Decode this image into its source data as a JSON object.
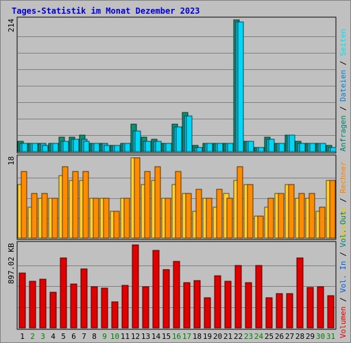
{
  "chart_data": {
    "type": "bar",
    "title": "Tages-Statistik im Monat Dezember 2023",
    "days": [
      "1",
      "2",
      "3",
      "4",
      "5",
      "6",
      "7",
      "8",
      "9",
      "10",
      "11",
      "12",
      "13",
      "14",
      "15",
      "16",
      "17",
      "18",
      "19",
      "20",
      "21",
      "22",
      "23",
      "24",
      "25",
      "26",
      "27",
      "28",
      "29",
      "30",
      "31"
    ],
    "weekend_days": [
      "2",
      "3",
      "9",
      "10",
      "16",
      "17",
      "23",
      "24",
      "30",
      "31"
    ],
    "colors": {
      "anfragen": "#008070",
      "dateien": "#0080d0",
      "seiten": "#00e0f0",
      "besuche": "#ffe040",
      "rechner": "#ff8000",
      "volin": "#0060d0",
      "volout": "#008080",
      "volumen": "#e00000",
      "weekday": "#000000",
      "weekend": "#008000",
      "title": "#0000d0"
    },
    "panels": [
      {
        "id": "hits",
        "ymax_label": "214",
        "ylim": [
          0,
          214
        ],
        "label_parts": [
          {
            "text": "Anfragen",
            "color": "#008070"
          },
          {
            "text": "Dateien",
            "color": "#0080d0"
          },
          {
            "text": "Seiten",
            "color": "#00e0f0"
          }
        ],
        "series": [
          {
            "name": "Anfragen",
            "color": "#0f8f6f",
            "values": [
              17,
              13,
              13,
              13,
              23,
              23,
              27,
              13,
              13,
              10,
              13,
              45,
              23,
              20,
              13,
              45,
              63,
              10,
              13,
              13,
              13,
              214,
              17,
              7,
              23,
              13,
              27,
              17,
              13,
              13,
              10
            ]
          },
          {
            "name": "Dateien",
            "color": "#1fb0d0",
            "values": [
              13,
              13,
              13,
              13,
              17,
              20,
              20,
              13,
              13,
              10,
              13,
              33,
              17,
              17,
              13,
              40,
              58,
              7,
              13,
              13,
              13,
              211,
              17,
              7,
              20,
              13,
              27,
              13,
              13,
              13,
              7
            ]
          },
          {
            "name": "Seiten",
            "color": "#00d8f8",
            "values": [
              13,
              13,
              10,
              13,
              17,
              20,
              17,
              13,
              10,
              10,
              13,
              33,
              17,
              17,
              13,
              40,
              58,
              7,
              13,
              13,
              13,
              211,
              17,
              7,
              20,
              13,
              27,
              13,
              13,
              13,
              7
            ]
          }
        ]
      },
      {
        "id": "visits",
        "ymax_label": "18",
        "ylim": [
          0,
          18
        ],
        "label_parts": [
          {
            "text": "Besuche",
            "color": "#e8c800"
          },
          {
            "text": "Rechner",
            "color": "#ff8000"
          }
        ],
        "series": [
          {
            "name": "Besuche",
            "color": "#ffd030",
            "values": [
              12,
              7,
              9,
              9,
              14,
              13,
              13,
              9,
              9,
              6,
              9,
              18,
              12,
              13,
              9,
              12,
              10,
              6,
              9,
              7,
              10,
              13,
              12,
              5,
              7,
              10,
              12,
              9,
              9,
              6,
              13
            ]
          },
          {
            "name": "Rechner",
            "color": "#ff8c00",
            "values": [
              15,
              10,
              10,
              9,
              16,
              15,
              15,
              9,
              9,
              6,
              9,
              18,
              15,
              16,
              9,
              15,
              10,
              11,
              9,
              11,
              9,
              16,
              12,
              5,
              9,
              10,
              12,
              10,
              10,
              7,
              13
            ]
          }
        ]
      },
      {
        "id": "volume",
        "ymax_label": "897.02 KB",
        "ylim": [
          0,
          897.02
        ],
        "label_parts": [
          {
            "text": "Volumen",
            "color": "#e00000"
          },
          {
            "text": "Vol. In",
            "color": "#0060d0"
          },
          {
            "text": "Vol. Out",
            "color": "#008080"
          }
        ],
        "series": [
          {
            "name": "Volumen",
            "color": "#e00000",
            "values": [
              587,
              503,
              522,
              379,
              748,
              472,
              631,
              443,
              423,
              278,
              457,
              889,
              443,
              834,
              626,
              716,
              484,
              511,
              323,
              559,
              498,
              667,
              484,
              667,
              323,
              368,
              368,
              748,
              435,
              443,
              345
            ]
          }
        ]
      }
    ]
  }
}
